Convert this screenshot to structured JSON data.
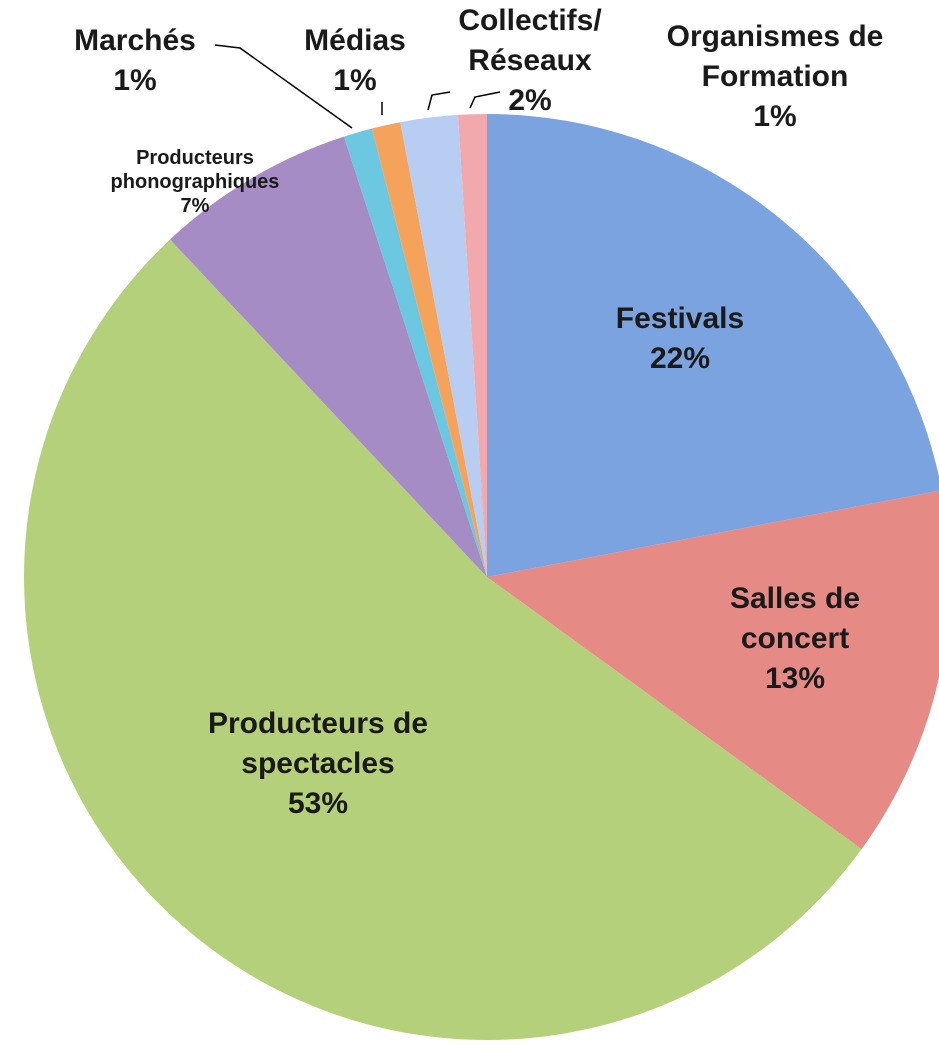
{
  "chart_data": {
    "type": "pie",
    "categories": [
      "Festivals",
      "Salles de\nconcert",
      "Producteurs de\nspectacles",
      "Producteurs\nphonographiques",
      "Marchés",
      "Médias",
      "Collectifs/\nRéseaux",
      "Organismes de\nFormation"
    ],
    "values": [
      22,
      13,
      53,
      7,
      1,
      1,
      2,
      1
    ],
    "value_labels": [
      "22%",
      "13%",
      "53%",
      "7%",
      "1%",
      "1%",
      "2%",
      "1%"
    ],
    "colors": [
      "#7aa3df",
      "#e58a85",
      "#b5d07a",
      "#a68cc4",
      "#6cc7e0",
      "#f5a35a",
      "#b7cdf2",
      "#f2a9ad"
    ]
  }
}
